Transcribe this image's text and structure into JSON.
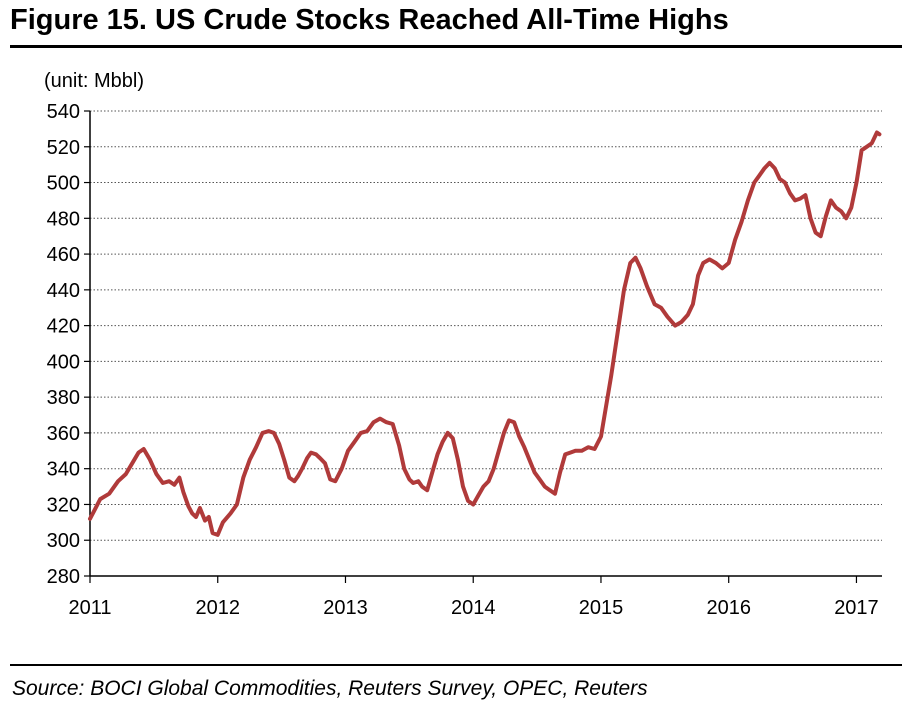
{
  "figure": {
    "title": "Figure 15. US Crude Stocks Reached All-Time Highs",
    "unit_label": "(unit: Mbbl)",
    "source": "Source: BOCI Global Commodities, Reuters Survey, OPEC, Reuters"
  },
  "chart_data": {
    "type": "line",
    "title": "Figure 15. US Crude Stocks Reached All-Time Highs",
    "xlabel": "",
    "ylabel": "(unit: Mbbl)",
    "ylim": [
      280,
      540
    ],
    "xlim": [
      2011.0,
      2017.2
    ],
    "y_ticks": [
      280,
      300,
      320,
      340,
      360,
      380,
      400,
      420,
      440,
      460,
      480,
      500,
      520,
      540
    ],
    "x_ticks": [
      "2011",
      "2012",
      "2013",
      "2014",
      "2015",
      "2016",
      "2017"
    ],
    "grid": "horizontal dotted",
    "line_color": "#b03a3a",
    "series": [
      {
        "name": "",
        "x": [
          2011.0,
          2011.03,
          2011.08,
          2011.15,
          2011.22,
          2011.28,
          2011.33,
          2011.38,
          2011.42,
          2011.47,
          2011.52,
          2011.57,
          2011.62,
          2011.66,
          2011.7,
          2011.73,
          2011.77,
          2011.8,
          2011.83,
          2011.86,
          2011.9,
          2011.93,
          2011.96,
          2012.0,
          2012.04,
          2012.1,
          2012.15,
          2012.2,
          2012.25,
          2012.3,
          2012.35,
          2012.4,
          2012.44,
          2012.48,
          2012.52,
          2012.56,
          2012.6,
          2012.63,
          2012.66,
          2012.7,
          2012.73,
          2012.77,
          2012.8,
          2012.84,
          2012.88,
          2012.92,
          2012.97,
          2013.02,
          2013.07,
          2013.12,
          2013.17,
          2013.22,
          2013.27,
          2013.32,
          2013.37,
          2013.42,
          2013.46,
          2013.5,
          2013.53,
          2013.57,
          2013.6,
          2013.64,
          2013.68,
          2013.72,
          2013.76,
          2013.8,
          2013.84,
          2013.88,
          2013.92,
          2013.96,
          2014.0,
          2014.04,
          2014.08,
          2014.12,
          2014.16,
          2014.2,
          2014.24,
          2014.28,
          2014.32,
          2014.36,
          2014.4,
          2014.44,
          2014.48,
          2014.52,
          2014.56,
          2014.6,
          2014.64,
          2014.68,
          2014.72,
          2014.76,
          2014.8,
          2014.85,
          2014.9,
          2014.95,
          2015.0,
          2015.04,
          2015.08,
          2015.13,
          2015.18,
          2015.23,
          2015.27,
          2015.31,
          2015.36,
          2015.42,
          2015.47,
          2015.52,
          2015.58,
          2015.63,
          2015.68,
          2015.72,
          2015.76,
          2015.8,
          2015.85,
          2015.9,
          2015.95,
          2016.0,
          2016.05,
          2016.1,
          2016.15,
          2016.2,
          2016.24,
          2016.28,
          2016.32,
          2016.36,
          2016.4,
          2016.44,
          2016.48,
          2016.52,
          2016.56,
          2016.6,
          2016.64,
          2016.68,
          2016.72,
          2016.76,
          2016.8,
          2016.84,
          2016.88,
          2016.92,
          2016.96,
          2017.0,
          2017.04,
          2017.08,
          2017.12,
          2017.16,
          2017.18
        ],
        "values": [
          312,
          316,
          323,
          326,
          333,
          337,
          343,
          349,
          351,
          345,
          337,
          332,
          333,
          331,
          335,
          327,
          319,
          315,
          313,
          318,
          311,
          313,
          304,
          303,
          310,
          315,
          320,
          335,
          345,
          352,
          360,
          361,
          360,
          354,
          345,
          335,
          333,
          336,
          340,
          346,
          349,
          348,
          346,
          343,
          334,
          333,
          340,
          350,
          355,
          360,
          361,
          366,
          368,
          366,
          365,
          353,
          340,
          334,
          332,
          333,
          330,
          328,
          338,
          348,
          355,
          360,
          357,
          345,
          330,
          322,
          320,
          325,
          330,
          333,
          340,
          350,
          360,
          367,
          366,
          358,
          352,
          345,
          338,
          334,
          330,
          328,
          326,
          338,
          348,
          349,
          350,
          350,
          352,
          351,
          358,
          375,
          392,
          416,
          440,
          455,
          458,
          452,
          442,
          432,
          430,
          425,
          420,
          422,
          426,
          432,
          448,
          455,
          457,
          455,
          452,
          455,
          468,
          478,
          490,
          500,
          504,
          508,
          511,
          508,
          502,
          500,
          494,
          490,
          491,
          493,
          480,
          472,
          470,
          481,
          490,
          486,
          484,
          480,
          486,
          500,
          518,
          520,
          522,
          528,
          527
        ]
      }
    ]
  }
}
